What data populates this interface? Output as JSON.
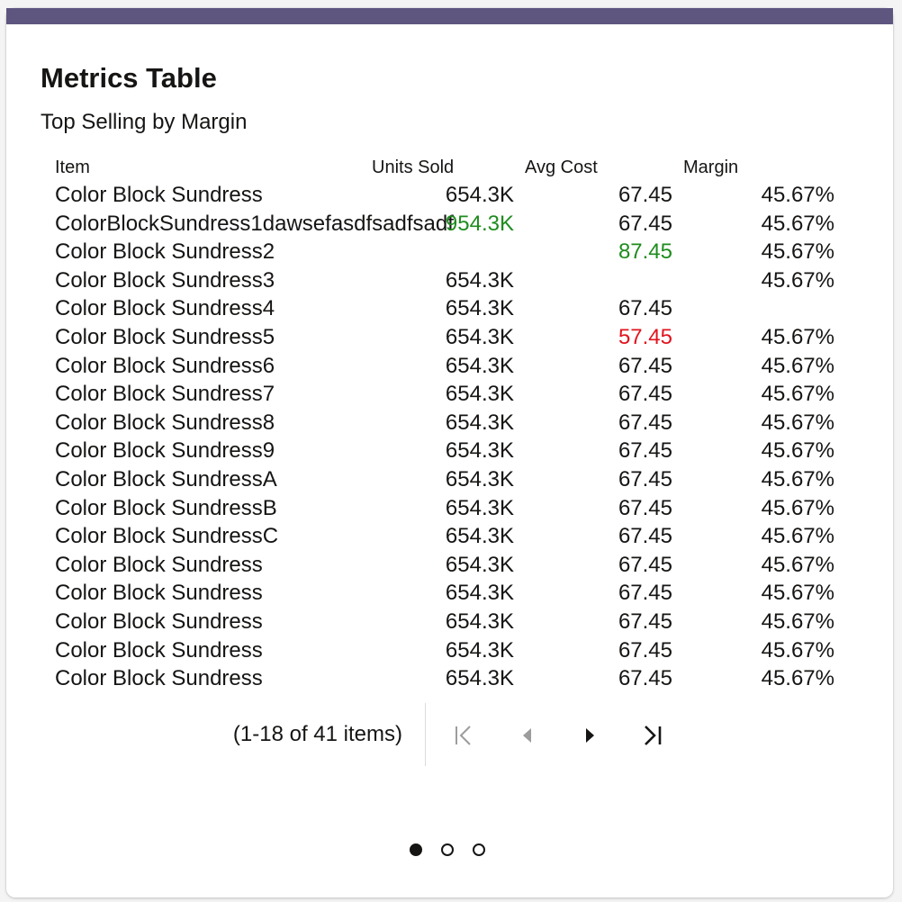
{
  "card": {
    "title": "Metrics Table",
    "subtitle": "Top Selling by Margin",
    "accent_color": "#5f5680"
  },
  "table": {
    "columns": [
      "Item",
      "Units Sold",
      "Avg Cost",
      "Margin"
    ],
    "rows": [
      {
        "item": "Color Block Sundress",
        "units": "654.3K",
        "cost": "67.45",
        "margin": "45.67%"
      },
      {
        "item": "ColorBlockSundress1dawsefasdfsadfsadf",
        "units": "954.3K",
        "units_status": "positive",
        "cost": "67.45",
        "margin": "45.67%"
      },
      {
        "item": "Color Block Sundress2",
        "units": "",
        "cost": "87.45",
        "cost_status": "positive",
        "margin": "45.67%"
      },
      {
        "item": "Color Block Sundress3",
        "units": "654.3K",
        "cost": "",
        "margin": "45.67%"
      },
      {
        "item": "Color Block Sundress4",
        "units": "654.3K",
        "cost": "67.45",
        "margin": ""
      },
      {
        "item": "Color Block Sundress5",
        "units": "654.3K",
        "cost": "57.45",
        "cost_status": "negative",
        "margin": "45.67%"
      },
      {
        "item": "Color Block Sundress6",
        "units": "654.3K",
        "cost": "67.45",
        "margin": "45.67%"
      },
      {
        "item": "Color Block Sundress7",
        "units": "654.3K",
        "cost": "67.45",
        "margin": "45.67%"
      },
      {
        "item": "Color Block Sundress8",
        "units": "654.3K",
        "cost": "67.45",
        "margin": "45.67%"
      },
      {
        "item": "Color Block Sundress9",
        "units": "654.3K",
        "cost": "67.45",
        "margin": "45.67%"
      },
      {
        "item": "Color Block SundressA",
        "units": "654.3K",
        "cost": "67.45",
        "margin": "45.67%"
      },
      {
        "item": "Color Block SundressB",
        "units": "654.3K",
        "cost": "67.45",
        "margin": "45.67%"
      },
      {
        "item": "Color Block SundressC",
        "units": "654.3K",
        "cost": "67.45",
        "margin": "45.67%"
      },
      {
        "item": "Color Block Sundress",
        "units": "654.3K",
        "cost": "67.45",
        "margin": "45.67%"
      },
      {
        "item": "Color Block Sundress",
        "units": "654.3K",
        "cost": "67.45",
        "margin": "45.67%"
      },
      {
        "item": "Color Block Sundress",
        "units": "654.3K",
        "cost": "67.45",
        "margin": "45.67%"
      },
      {
        "item": "Color Block Sundress",
        "units": "654.3K",
        "cost": "67.45",
        "margin": "45.67%"
      },
      {
        "item": "Color Block Sundress",
        "units": "654.3K",
        "cost": "67.45",
        "margin": "45.67%"
      }
    ]
  },
  "pagination": {
    "info": "(1-18 of 41 items)",
    "buttons": [
      {
        "name": "first-page-icon",
        "enabled": false
      },
      {
        "name": "previous-page-icon",
        "enabled": false
      },
      {
        "name": "next-page-icon",
        "enabled": true
      },
      {
        "name": "last-page-icon",
        "enabled": true
      }
    ]
  },
  "carousel": {
    "pages": 3,
    "active_index": 0
  },
  "colors": {
    "positive": "#1e8c1e",
    "negative": "#e0141e",
    "text": "#161513",
    "disabled": "#9c9c9c"
  }
}
